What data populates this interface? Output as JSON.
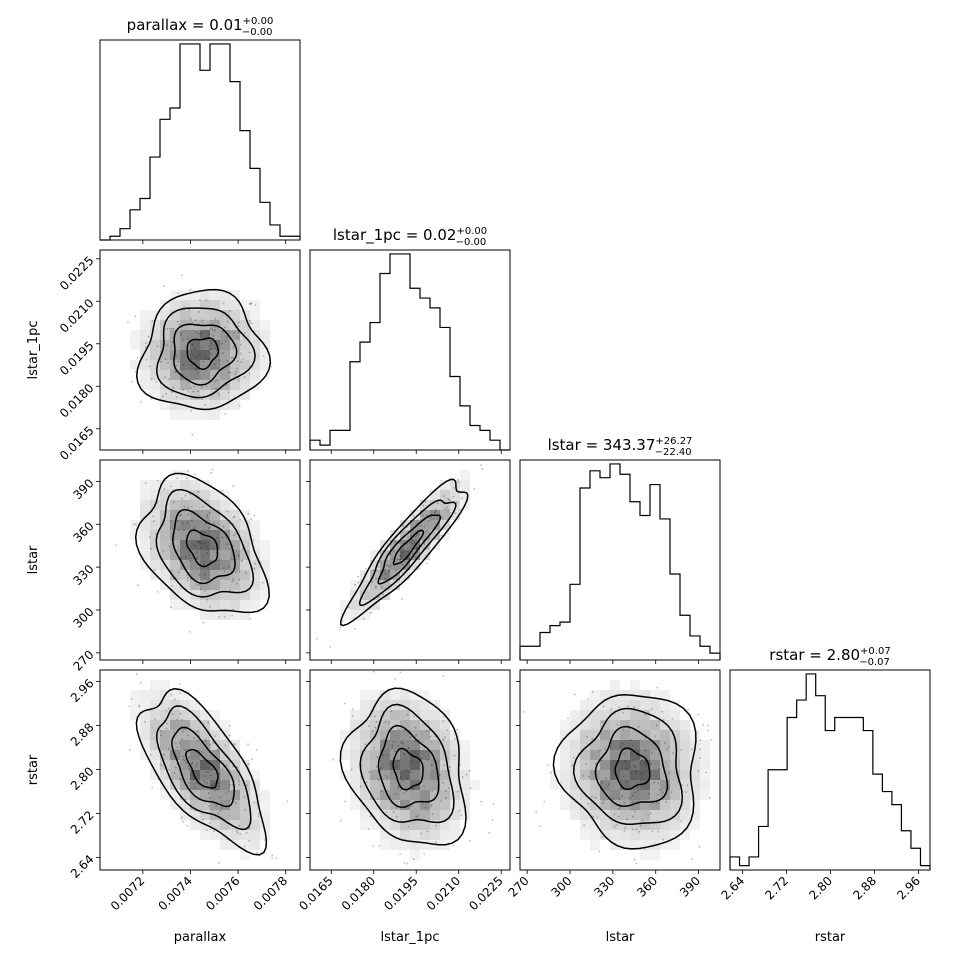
{
  "chart_data": {
    "type": "corner",
    "parameters": [
      "parallax",
      "lstar_1pc",
      "lstar",
      "rstar"
    ],
    "titles": {
      "parallax": {
        "name": "parallax",
        "value": "0.01",
        "plus": "+0.00",
        "minus": "−0.00"
      },
      "lstar_1pc": {
        "name": "lstar_1pc",
        "value": "0.02",
        "plus": "+0.00",
        "minus": "−0.00"
      },
      "lstar": {
        "name": "lstar",
        "value": "343.37",
        "plus": "+26.27",
        "minus": "−22.40"
      },
      "rstar": {
        "name": "rstar",
        "value": "2.80",
        "plus": "+0.07",
        "minus": "−0.07"
      }
    },
    "axis_ranges": {
      "parallax": [
        0.00702,
        0.00786
      ],
      "lstar_1pc": [
        0.01575,
        0.02281
      ],
      "lstar": [
        265,
        405
      ],
      "rstar": [
        2.617,
        2.981
      ]
    },
    "ticks": {
      "parallax": [
        "0.0072",
        "0.0074",
        "0.0076",
        "0.0078"
      ],
      "lstar_1pc": [
        "0.0165",
        "0.0180",
        "0.0195",
        "0.0210",
        "0.0225"
      ],
      "lstar": [
        "270",
        "300",
        "330",
        "360",
        "390"
      ],
      "rstar": [
        "2.64",
        "2.72",
        "2.80",
        "2.88",
        "2.96"
      ]
    },
    "histograms": {
      "parallax": [
        0,
        1,
        3,
        8,
        11,
        22,
        32,
        35,
        52,
        52,
        45,
        52,
        52,
        42,
        29,
        19,
        10,
        4,
        1,
        1
      ],
      "lstar_1pc": [
        2,
        1,
        4,
        4,
        18,
        22,
        26,
        36,
        40,
        40,
        33,
        31,
        29,
        25,
        15,
        9,
        5,
        4,
        2,
        0
      ],
      "lstar": [
        4,
        4,
        8,
        10,
        11,
        22,
        50,
        55,
        53,
        57,
        54,
        46,
        42,
        51,
        41,
        25,
        13,
        7,
        4,
        2
      ],
      "rstar": [
        3,
        1,
        3,
        10,
        23,
        23,
        35,
        39,
        45,
        40,
        32,
        35,
        35,
        35,
        32,
        22,
        18,
        15,
        9,
        5,
        1
      ]
    },
    "correlations": {
      "lstar_1pc|parallax": 0.05,
      "lstar|parallax": -0.35,
      "lstar|lstar_1pc": 0.9,
      "rstar|parallax": -0.65,
      "rstar|lstar_1pc": -0.2,
      "rstar|lstar": -0.05
    },
    "centers": {
      "parallax": 0.00745,
      "lstar_1pc": 0.0192,
      "lstar": 343.37,
      "rstar": 2.8
    },
    "spreads": {
      "parallax": 0.00013,
      "lstar_1pc": 0.00105,
      "lstar": 24,
      "rstar": 0.07
    },
    "xlabels": [
      "parallax",
      "lstar_1pc",
      "lstar",
      "rstar"
    ],
    "ylabels": [
      "lstar_1pc",
      "lstar",
      "rstar"
    ],
    "grid": false,
    "colors": {
      "line": "#000000",
      "density": "#000000",
      "points": "#a0a0a0"
    }
  }
}
